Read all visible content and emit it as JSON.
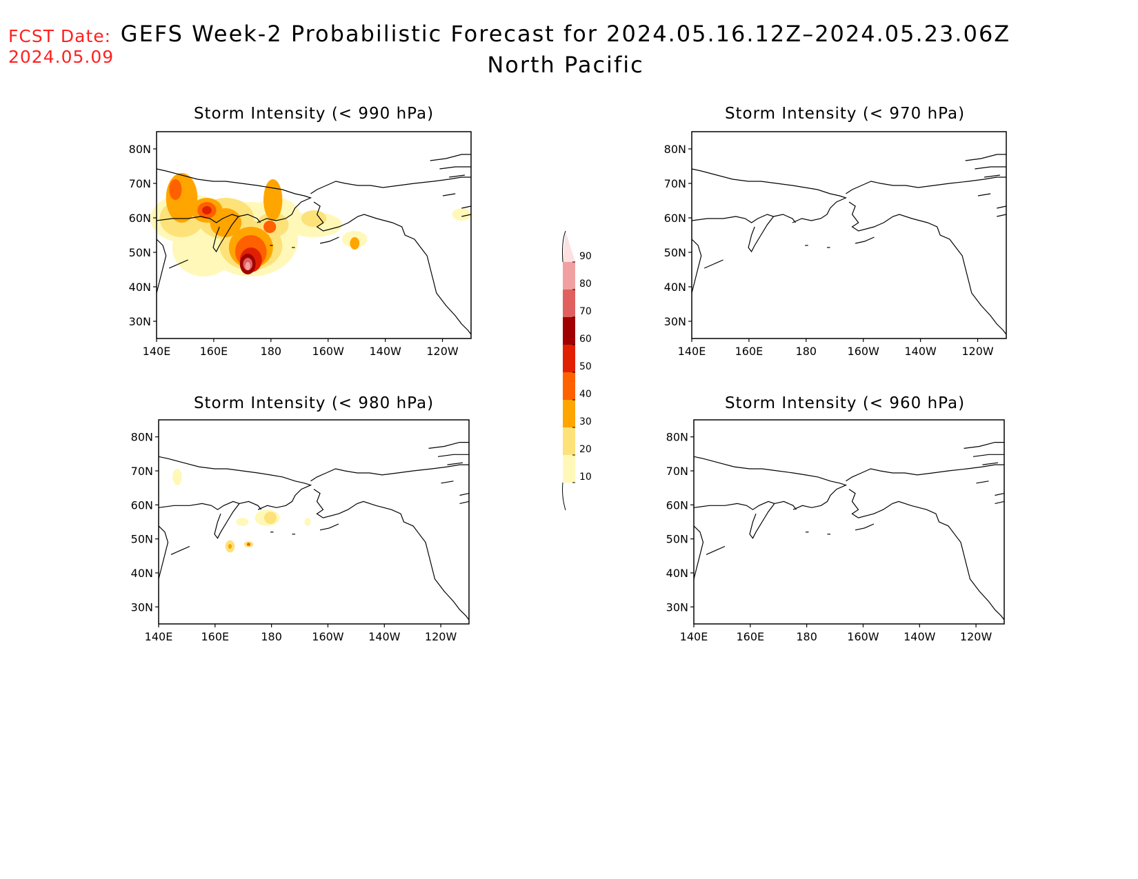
{
  "fcst": {
    "line1": "FCST Date:",
    "line2": "2024.05.09"
  },
  "title": {
    "line1": "GEFS Week-2 Probabilistic Forecast for 2024.05.16.12Z–2024.05.23.06Z",
    "line2": "North Pacific"
  },
  "axes": {
    "lat_ticks": [
      "80N",
      "70N",
      "60N",
      "50N",
      "40N",
      "30N"
    ],
    "lon_ticks": [
      "140E",
      "160E",
      "180",
      "160W",
      "140W",
      "120W"
    ]
  },
  "panels": [
    {
      "id": "p990",
      "title": "Storm Intensity (< 990 hPa)",
      "has_data": true
    },
    {
      "id": "p970",
      "title": "Storm Intensity (< 970 hPa)",
      "has_data": false
    },
    {
      "id": "p980",
      "title": "Storm Intensity (< 980 hPa)",
      "has_data": true
    },
    {
      "id": "p960",
      "title": "Storm Intensity (< 960 hPa)",
      "has_data": false
    }
  ],
  "colorbar": {
    "levels": [
      "10",
      "20",
      "30",
      "40",
      "50",
      "60",
      "70",
      "80",
      "90"
    ],
    "colors": [
      "#fff8b8",
      "#fde27a",
      "#ffa500",
      "#ff6000",
      "#e02000",
      "#a00000",
      "#e06060",
      "#f0a0a0",
      "#fde0e0"
    ]
  }
}
